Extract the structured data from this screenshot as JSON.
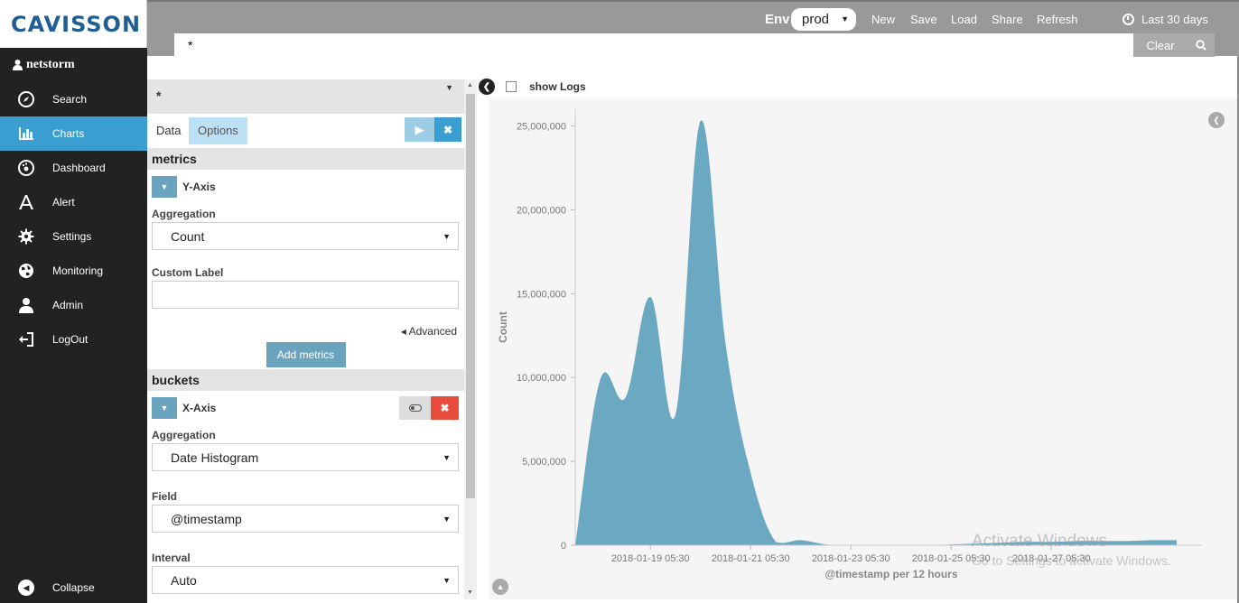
{
  "app": {
    "logo": "CAVISSON",
    "user": "netstorm"
  },
  "sidebar": {
    "items": [
      {
        "label": "Search",
        "icon": "compass-icon"
      },
      {
        "label": "Charts",
        "icon": "bar-chart-icon"
      },
      {
        "label": "Dashboard",
        "icon": "dashboard-icon"
      },
      {
        "label": "Alert",
        "icon": "alert-icon"
      },
      {
        "label": "Settings",
        "icon": "gear-icon"
      },
      {
        "label": "Monitoring",
        "icon": "globe-icon"
      },
      {
        "label": "Admin",
        "icon": "user-icon"
      },
      {
        "label": "LogOut",
        "icon": "logout-icon"
      }
    ],
    "active": "Charts",
    "collapse_label": "Collapse"
  },
  "topbar": {
    "env_label": "Env",
    "env_value": "prod",
    "links": [
      "New",
      "Save",
      "Load",
      "Share",
      "Refresh"
    ],
    "time_range": "Last 30 days",
    "query": "*",
    "clear_label": "Clear"
  },
  "editor": {
    "index_pattern": "*",
    "tabs": {
      "data": "Data",
      "options": "Options"
    },
    "metrics": {
      "title": "metrics",
      "y_axis_label": "Y-Axis",
      "aggregation_label": "Aggregation",
      "aggregation_value": "Count",
      "custom_label_label": "Custom Label",
      "custom_label_value": "",
      "advanced_label": "Advanced",
      "add_button": "Add metrics"
    },
    "buckets": {
      "title": "buckets",
      "x_axis_label": "X-Axis",
      "aggregation_label": "Aggregation",
      "aggregation_value": "Date Histogram",
      "field_label": "Field",
      "field_value": "@timestamp",
      "interval_label": "Interval",
      "interval_value": "Auto"
    }
  },
  "viz": {
    "show_logs_label": "show Logs"
  },
  "watermark": {
    "line1": "Activate Windows",
    "line2": "Go to Settings to activate Windows."
  },
  "chart_data": {
    "type": "area",
    "title": "",
    "xlabel": "@timestamp per 12 hours",
    "ylabel": "Count",
    "ylim": [
      0,
      26000000
    ],
    "y_ticks": [
      0,
      5000000,
      10000000,
      15000000,
      20000000,
      25000000
    ],
    "y_tick_labels": [
      "0",
      "5,000,000",
      "10,000,000",
      "15,000,000",
      "20,000,000",
      "25,000,000"
    ],
    "x_tick_labels": [
      "2018-01-19 05:30",
      "2018-01-21 05:30",
      "2018-01-23 05:30",
      "2018-01-25 05:30",
      "2018-01-27 05:30"
    ],
    "x_range": [
      "2018-01-17 17:30",
      "2018-01-29 17:30"
    ],
    "x_ticks": [
      "2018-01-19 05:30",
      "2018-01-21 05:30",
      "2018-01-23 05:30",
      "2018-01-25 05:30",
      "2018-01-27 05:30"
    ],
    "x": [
      "2018-01-17 17:30",
      "2018-01-18 05:30",
      "2018-01-18 17:30",
      "2018-01-19 05:30",
      "2018-01-19 17:30",
      "2018-01-20 05:30",
      "2018-01-20 17:30",
      "2018-01-21 05:30",
      "2018-01-21 17:30",
      "2018-01-22 05:30",
      "2018-01-22 17:30",
      "2018-01-23 05:30",
      "2018-01-23 17:30",
      "2018-01-24 05:30",
      "2018-01-24 17:30",
      "2018-01-25 05:30",
      "2018-01-25 17:30",
      "2018-01-26 05:30",
      "2018-01-26 17:30",
      "2018-01-27 05:30",
      "2018-01-27 17:30",
      "2018-01-28 05:30",
      "2018-01-28 17:30",
      "2018-01-29 05:30",
      "2018-01-29 17:30"
    ],
    "series": [
      {
        "values": [
          0,
          9900000,
          8800000,
          14800000,
          7800000,
          25300000,
          12000000,
          4300000,
          200000,
          300000,
          50000,
          0,
          0,
          0,
          0,
          50000,
          100000,
          150000,
          200000,
          200000,
          250000,
          250000,
          250000,
          300000,
          300000
        ]
      }
    ],
    "color": "#6aa9c1",
    "grid": false
  }
}
